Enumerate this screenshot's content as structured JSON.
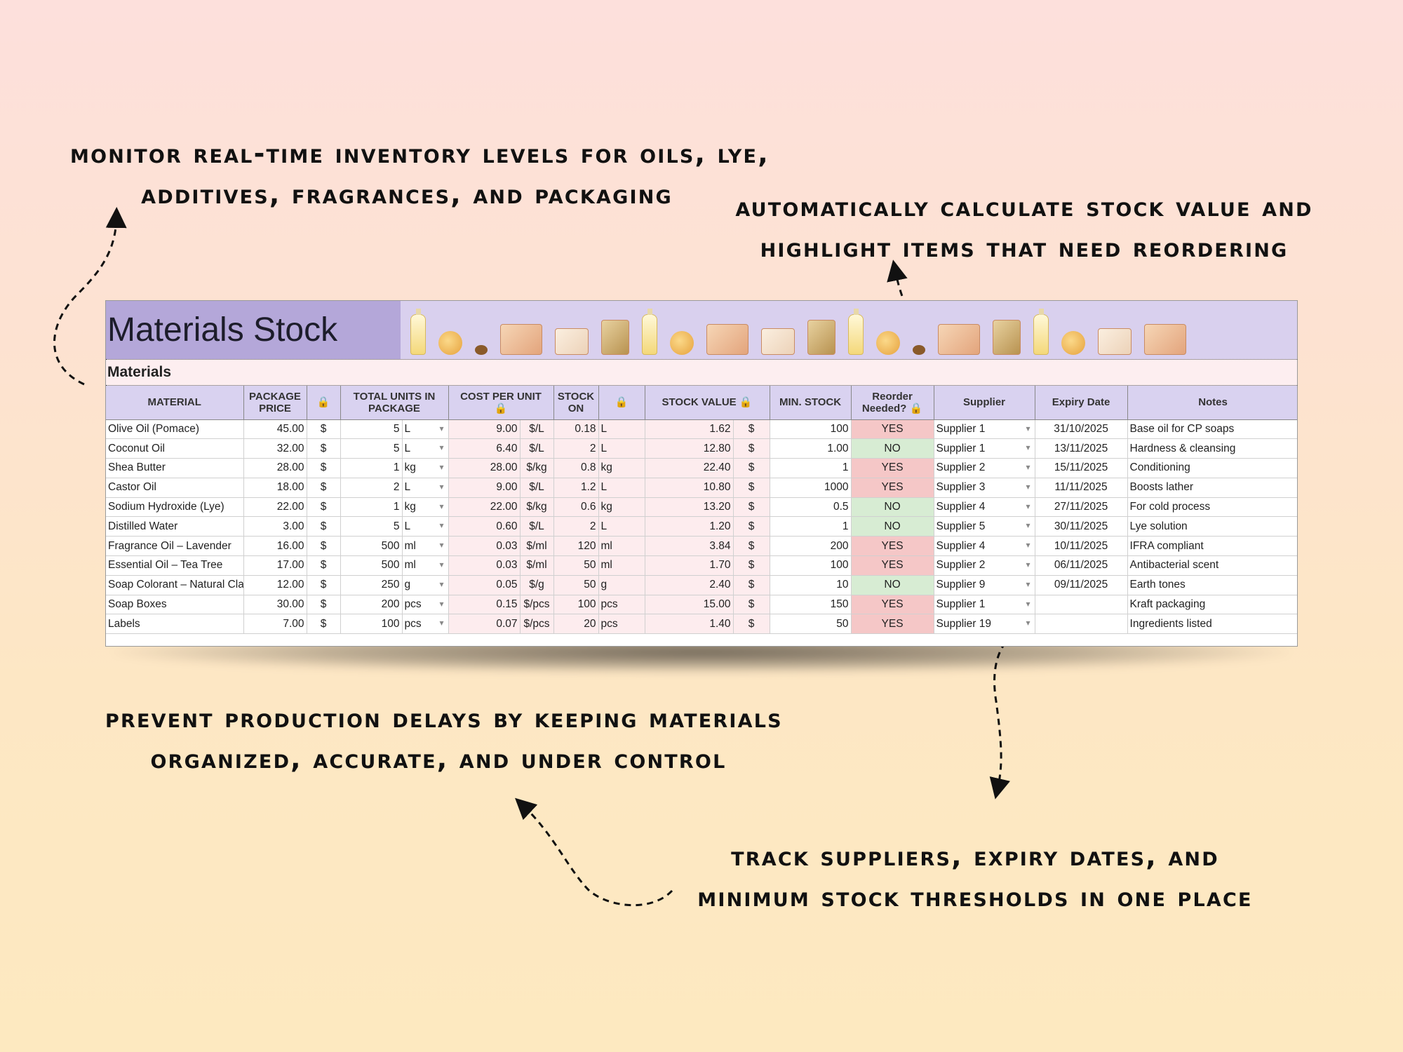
{
  "callouts": {
    "top_left": [
      "Monitor real-time inventory levels for oils, lye,",
      "additives, fragrances, and packaging"
    ],
    "top_right": [
      "Automatically calculate stock value and",
      "highlight items that need reordering"
    ],
    "bottom_left": [
      "Prevent production delays by keeping materials",
      "organized, accurate, and under control"
    ],
    "bottom_right": [
      "Track suppliers, expiry dates, and",
      "minimum stock thresholds in one place"
    ]
  },
  "sheet": {
    "title": "Materials Stock",
    "section": "Materials",
    "headers": {
      "material": "MATERIAL",
      "package_price": "PACKAGE PRICE",
      "total_units": "TOTAL UNITS IN PACKAGE",
      "cost_per_unit": "COST PER UNIT",
      "stock_on": "STOCK ON",
      "stock_value": "STOCK VALUE",
      "min_stock": "MIN. STOCK",
      "reorder": "Reorder Needed?",
      "supplier": "Supplier",
      "expiry": "Expiry Date",
      "notes": "Notes"
    },
    "lock_glyph": "🔒",
    "rows": [
      {
        "material": "Olive Oil (Pomace)",
        "price": "45.00",
        "cur": "$",
        "units": "5",
        "unit": "L",
        "cost": "9.00",
        "cost_unit": "$/L",
        "stock": "0.18",
        "stock_unit": "L",
        "value": "1.62",
        "vcur": "$",
        "min": "100",
        "reorder": "YES",
        "supplier": "Supplier 1",
        "expiry": "31/10/2025",
        "notes": "Base oil for CP soaps"
      },
      {
        "material": "Coconut Oil",
        "price": "32.00",
        "cur": "$",
        "units": "5",
        "unit": "L",
        "cost": "6.40",
        "cost_unit": "$/L",
        "stock": "2",
        "stock_unit": "L",
        "value": "12.80",
        "vcur": "$",
        "min": "1.00",
        "reorder": "NO",
        "supplier": "Supplier 1",
        "expiry": "13/11/2025",
        "notes": "Hardness & cleansing"
      },
      {
        "material": "Shea Butter",
        "price": "28.00",
        "cur": "$",
        "units": "1",
        "unit": "kg",
        "cost": "28.00",
        "cost_unit": "$/kg",
        "stock": "0.8",
        "stock_unit": "kg",
        "value": "22.40",
        "vcur": "$",
        "min": "1",
        "reorder": "YES",
        "supplier": "Supplier 2",
        "expiry": "15/11/2025",
        "notes": "Conditioning"
      },
      {
        "material": "Castor Oil",
        "price": "18.00",
        "cur": "$",
        "units": "2",
        "unit": "L",
        "cost": "9.00",
        "cost_unit": "$/L",
        "stock": "1.2",
        "stock_unit": "L",
        "value": "10.80",
        "vcur": "$",
        "min": "1000",
        "reorder": "YES",
        "supplier": "Supplier 3",
        "expiry": "11/11/2025",
        "notes": "Boosts lather"
      },
      {
        "material": "Sodium Hydroxide (Lye)",
        "price": "22.00",
        "cur": "$",
        "units": "1",
        "unit": "kg",
        "cost": "22.00",
        "cost_unit": "$/kg",
        "stock": "0.6",
        "stock_unit": "kg",
        "value": "13.20",
        "vcur": "$",
        "min": "0.5",
        "reorder": "NO",
        "supplier": "Supplier 4",
        "expiry": "27/11/2025",
        "notes": "For cold process"
      },
      {
        "material": "Distilled Water",
        "price": "3.00",
        "cur": "$",
        "units": "5",
        "unit": "L",
        "cost": "0.60",
        "cost_unit": "$/L",
        "stock": "2",
        "stock_unit": "L",
        "value": "1.20",
        "vcur": "$",
        "min": "1",
        "reorder": "NO",
        "supplier": "Supplier 5",
        "expiry": "30/11/2025",
        "notes": "Lye solution"
      },
      {
        "material": "Fragrance Oil – Lavender",
        "price": "16.00",
        "cur": "$",
        "units": "500",
        "unit": "ml",
        "cost": "0.03",
        "cost_unit": "$/ml",
        "stock": "120",
        "stock_unit": "ml",
        "value": "3.84",
        "vcur": "$",
        "min": "200",
        "reorder": "YES",
        "supplier": "Supplier 4",
        "expiry": "10/11/2025",
        "notes": "IFRA compliant"
      },
      {
        "material": "Essential Oil – Tea Tree",
        "price": "17.00",
        "cur": "$",
        "units": "500",
        "unit": "ml",
        "cost": "0.03",
        "cost_unit": "$/ml",
        "stock": "50",
        "stock_unit": "ml",
        "value": "1.70",
        "vcur": "$",
        "min": "100",
        "reorder": "YES",
        "supplier": "Supplier 2",
        "expiry": "06/11/2025",
        "notes": "Antibacterial scent"
      },
      {
        "material": "Soap Colorant – Natural Clay",
        "price": "12.00",
        "cur": "$",
        "units": "250",
        "unit": "g",
        "cost": "0.05",
        "cost_unit": "$/g",
        "stock": "50",
        "stock_unit": "g",
        "value": "2.40",
        "vcur": "$",
        "min": "10",
        "reorder": "NO",
        "supplier": "Supplier 9",
        "expiry": "09/11/2025",
        "notes": "Earth tones"
      },
      {
        "material": "Soap Boxes",
        "price": "30.00",
        "cur": "$",
        "units": "200",
        "unit": "pcs",
        "cost": "0.15",
        "cost_unit": "$/pcs",
        "stock": "100",
        "stock_unit": "pcs",
        "value": "15.00",
        "vcur": "$",
        "min": "150",
        "reorder": "YES",
        "supplier": "Supplier 1",
        "expiry": "",
        "notes": "Kraft packaging"
      },
      {
        "material": "Labels",
        "price": "7.00",
        "cur": "$",
        "units": "100",
        "unit": "pcs",
        "cost": "0.07",
        "cost_unit": "$/pcs",
        "stock": "20",
        "stock_unit": "pcs",
        "value": "1.40",
        "vcur": "$",
        "min": "50",
        "reorder": "YES",
        "supplier": "Supplier 19",
        "expiry": "",
        "notes": "Ingredients listed"
      }
    ]
  }
}
